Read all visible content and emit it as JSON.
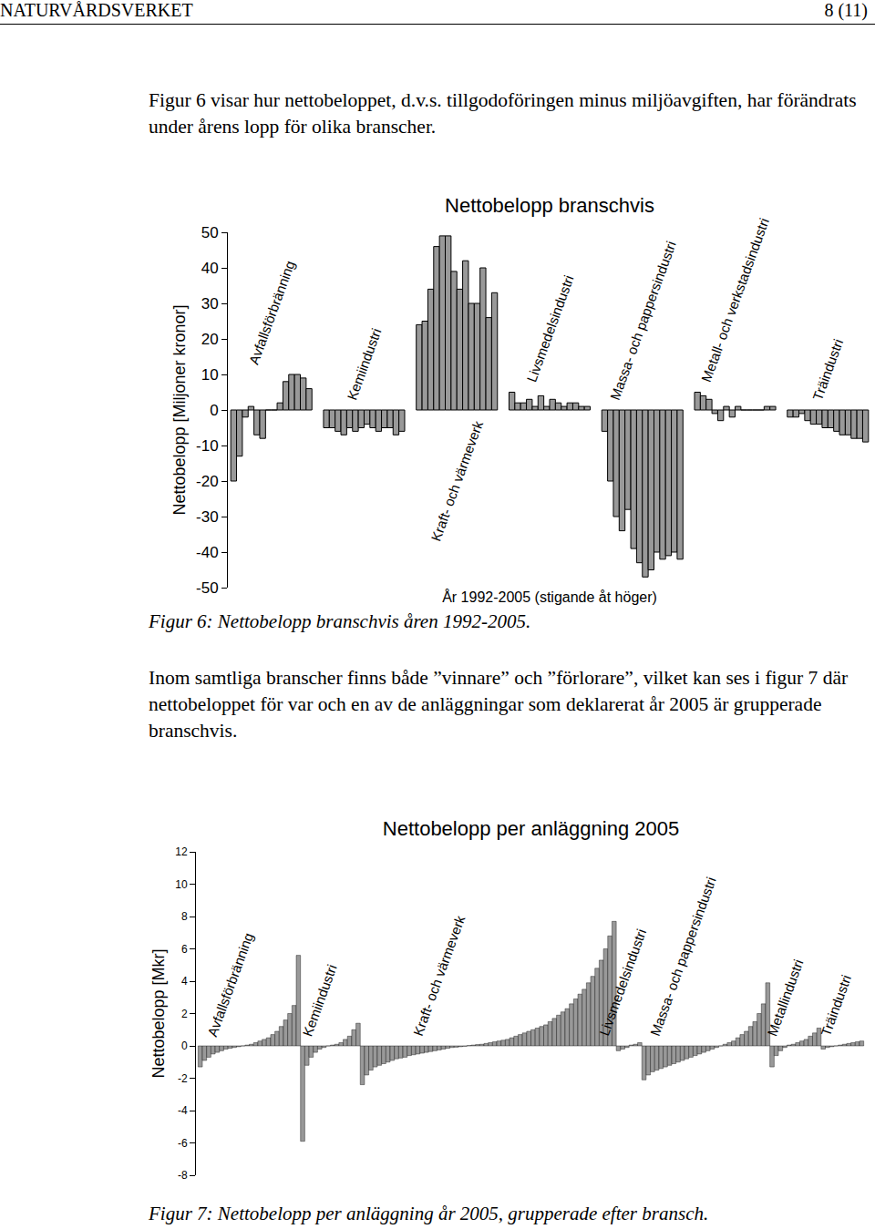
{
  "header": {
    "left": "NATURVÅRDSVERKET",
    "right": "8 (11)"
  },
  "paragraphs": [
    "Figur 6 visar hur nettobeloppet, d.v.s. tillgodoföringen minus miljöavgiften, har förändrats under årens lopp för olika branscher.",
    "Inom samtliga branscher finns både ”vinnare” och ”förlorare”, vilket kan ses i figur 7 där nettobeloppet för var och en av de anläggningar som deklarerat år 2005 är grupperade branschvis."
  ],
  "figure_captions": [
    "Figur 6: Nettobelopp branschvis åren 1992-2005.",
    "Figur 7: Nettobelopp per anläggning år 2005, grupperade efter bransch."
  ],
  "chart_data": [
    {
      "type": "bar",
      "title": "Nettobelopp branschvis",
      "y_label": "Nettobelopp [Miljoner kronor]",
      "x_label": "År 1992-2005 (stigande åt höger)",
      "color": "#999999",
      "tick_labels": "y",
      "grid": false,
      "ylim": [
        -50,
        50
      ],
      "yticks": [
        -50,
        -40,
        -30,
        -20,
        -10,
        0,
        10,
        20,
        30,
        40,
        50
      ],
      "groups": [
        {
          "name": "Avfallsförbränning",
          "values": [
            -20,
            -13,
            -2,
            1,
            -7,
            -8,
            0,
            0,
            2,
            8,
            10,
            10,
            9,
            6
          ]
        },
        {
          "name": "Kemiindustri",
          "values": [
            -5,
            -5,
            -6,
            -7,
            -5,
            -6,
            -5,
            -4,
            -5,
            -6,
            -5,
            -5,
            -7,
            -6
          ]
        },
        {
          "name": "Kraft- och värmeverk",
          "values": [
            24,
            25,
            34,
            46,
            49,
            49,
            39,
            34,
            42,
            30,
            30,
            40,
            26,
            33
          ]
        },
        {
          "name": "Livsmedelsindustri",
          "values": [
            5,
            2,
            2,
            3,
            1,
            4,
            1,
            3,
            2,
            1,
            2,
            2,
            1,
            1
          ]
        },
        {
          "name": "Massa- och pappersindustri",
          "values": [
            -6,
            -20,
            -30,
            -34,
            -28,
            -39,
            -43,
            -47,
            -45,
            -40,
            -42,
            -41,
            -40,
            -42
          ]
        },
        {
          "name": "Metall- och verkstadsindustri",
          "values": [
            5,
            4,
            3,
            -1,
            -3,
            1,
            -2,
            1,
            0,
            0,
            0,
            0,
            1,
            1
          ]
        },
        {
          "name": "Träindustri",
          "values": [
            -2,
            -2,
            -1,
            -3,
            -4,
            -4,
            -5,
            -5,
            -6,
            -7,
            -7,
            -8,
            -8,
            -9
          ]
        }
      ]
    },
    {
      "type": "bar",
      "title": "Nettobelopp per anläggning 2005",
      "y_label": "Nettobelopp [Mkr]",
      "color": "#999999",
      "tick_labels": "y",
      "grid": false,
      "ylim": [
        -8,
        12
      ],
      "yticks": [
        -8,
        -6,
        -4,
        -2,
        0,
        2,
        4,
        6,
        8,
        10,
        12
      ],
      "groups": [
        {
          "name": "Avfallsförbränning",
          "values": [
            -1.3,
            -0.9,
            -0.7,
            -0.5,
            -0.4,
            -0.3,
            -0.2,
            -0.15,
            -0.1,
            -0.05,
            0,
            0.05,
            0.1,
            0.2,
            0.3,
            0.4,
            0.5,
            0.7,
            0.9,
            1.2,
            1.6,
            2.0,
            2.5,
            5.6
          ]
        },
        {
          "name": "Kemiindustri",
          "values": [
            -5.9,
            -1.2,
            -0.7,
            -0.4,
            -0.2,
            -0.1,
            0,
            0.05,
            0.1,
            0.2,
            0.4,
            0.6,
            1.0,
            1.4
          ]
        },
        {
          "name": "Kraft- och värmeverk",
          "values": [
            -2.4,
            -1.8,
            -1.5,
            -1.3,
            -1.2,
            -1.1,
            -1.0,
            -0.9,
            -0.8,
            -0.75,
            -0.7,
            -0.6,
            -0.55,
            -0.5,
            -0.45,
            -0.4,
            -0.35,
            -0.3,
            -0.25,
            -0.2,
            -0.15,
            -0.1,
            -0.08,
            -0.05,
            -0.02,
            0.02,
            0.05,
            0.08,
            0.1,
            0.15,
            0.2,
            0.25,
            0.3,
            0.35,
            0.4,
            0.5,
            0.6,
            0.7,
            0.8,
            0.9,
            1.0,
            1.1,
            1.2,
            1.3,
            1.5,
            1.7,
            1.9,
            2.1,
            2.3,
            2.6,
            2.9,
            3.2,
            3.5,
            3.9,
            4.3,
            4.8,
            5.3,
            6.0,
            6.8,
            7.7
          ]
        },
        {
          "name": "Livsmedelsindustri",
          "values": [
            -0.3,
            -0.2,
            -0.1,
            0.05,
            0.1,
            0.2
          ]
        },
        {
          "name": "Massa- och pappersindustri",
          "values": [
            -2.1,
            -1.8,
            -1.6,
            -1.5,
            -1.4,
            -1.3,
            -1.2,
            -1.1,
            -1.0,
            -0.9,
            -0.8,
            -0.7,
            -0.6,
            -0.5,
            -0.4,
            -0.3,
            -0.2,
            -0.1,
            0,
            0.1,
            0.2,
            0.3,
            0.5,
            0.7,
            0.9,
            1.2,
            1.5,
            2.0,
            2.6,
            3.9
          ]
        },
        {
          "name": "Metallindustri",
          "values": [
            -1.3,
            -0.6,
            -0.3,
            -0.1,
            0.05,
            0.1,
            0.2,
            0.3,
            0.4,
            0.6,
            0.8,
            1.1
          ]
        },
        {
          "name": "Träindustri",
          "values": [
            -0.2,
            -0.1,
            -0.05,
            0,
            0.05,
            0.1,
            0.15,
            0.2,
            0.25,
            0.3
          ]
        }
      ]
    }
  ]
}
